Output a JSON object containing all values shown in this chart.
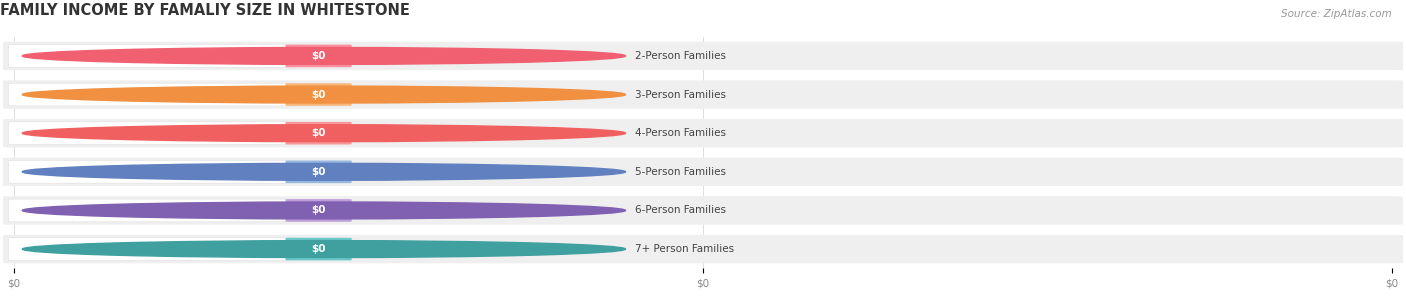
{
  "title": "FAMILY INCOME BY FAMALIY SIZE IN WHITESTONE",
  "source": "Source: ZipAtlas.com",
  "categories": [
    "2-Person Families",
    "3-Person Families",
    "4-Person Families",
    "5-Person Families",
    "6-Person Families",
    "7+ Person Families"
  ],
  "values": [
    0,
    0,
    0,
    0,
    0,
    0
  ],
  "bar_colors": [
    "#f8919f",
    "#f7b87a",
    "#f79898",
    "#96b8e0",
    "#be9fda",
    "#6cc8c8"
  ],
  "dot_colors": [
    "#f06070",
    "#f09040",
    "#f06060",
    "#6080c0",
    "#8060b0",
    "#40a0a0"
  ],
  "label_color": "#444444",
  "value_label_color": "#ffffff",
  "background_color": "#ffffff",
  "bar_bg_color": "#efefef",
  "title_color": "#333333",
  "source_color": "#999999",
  "bar_height": 0.72,
  "title_fontsize": 10.5,
  "label_fontsize": 7.5,
  "value_fontsize": 7.5,
  "source_fontsize": 7.5,
  "xtick_labels": [
    "$0",
    "$0",
    "$0"
  ],
  "xtick_positions": [
    0.0,
    0.5,
    1.0
  ]
}
